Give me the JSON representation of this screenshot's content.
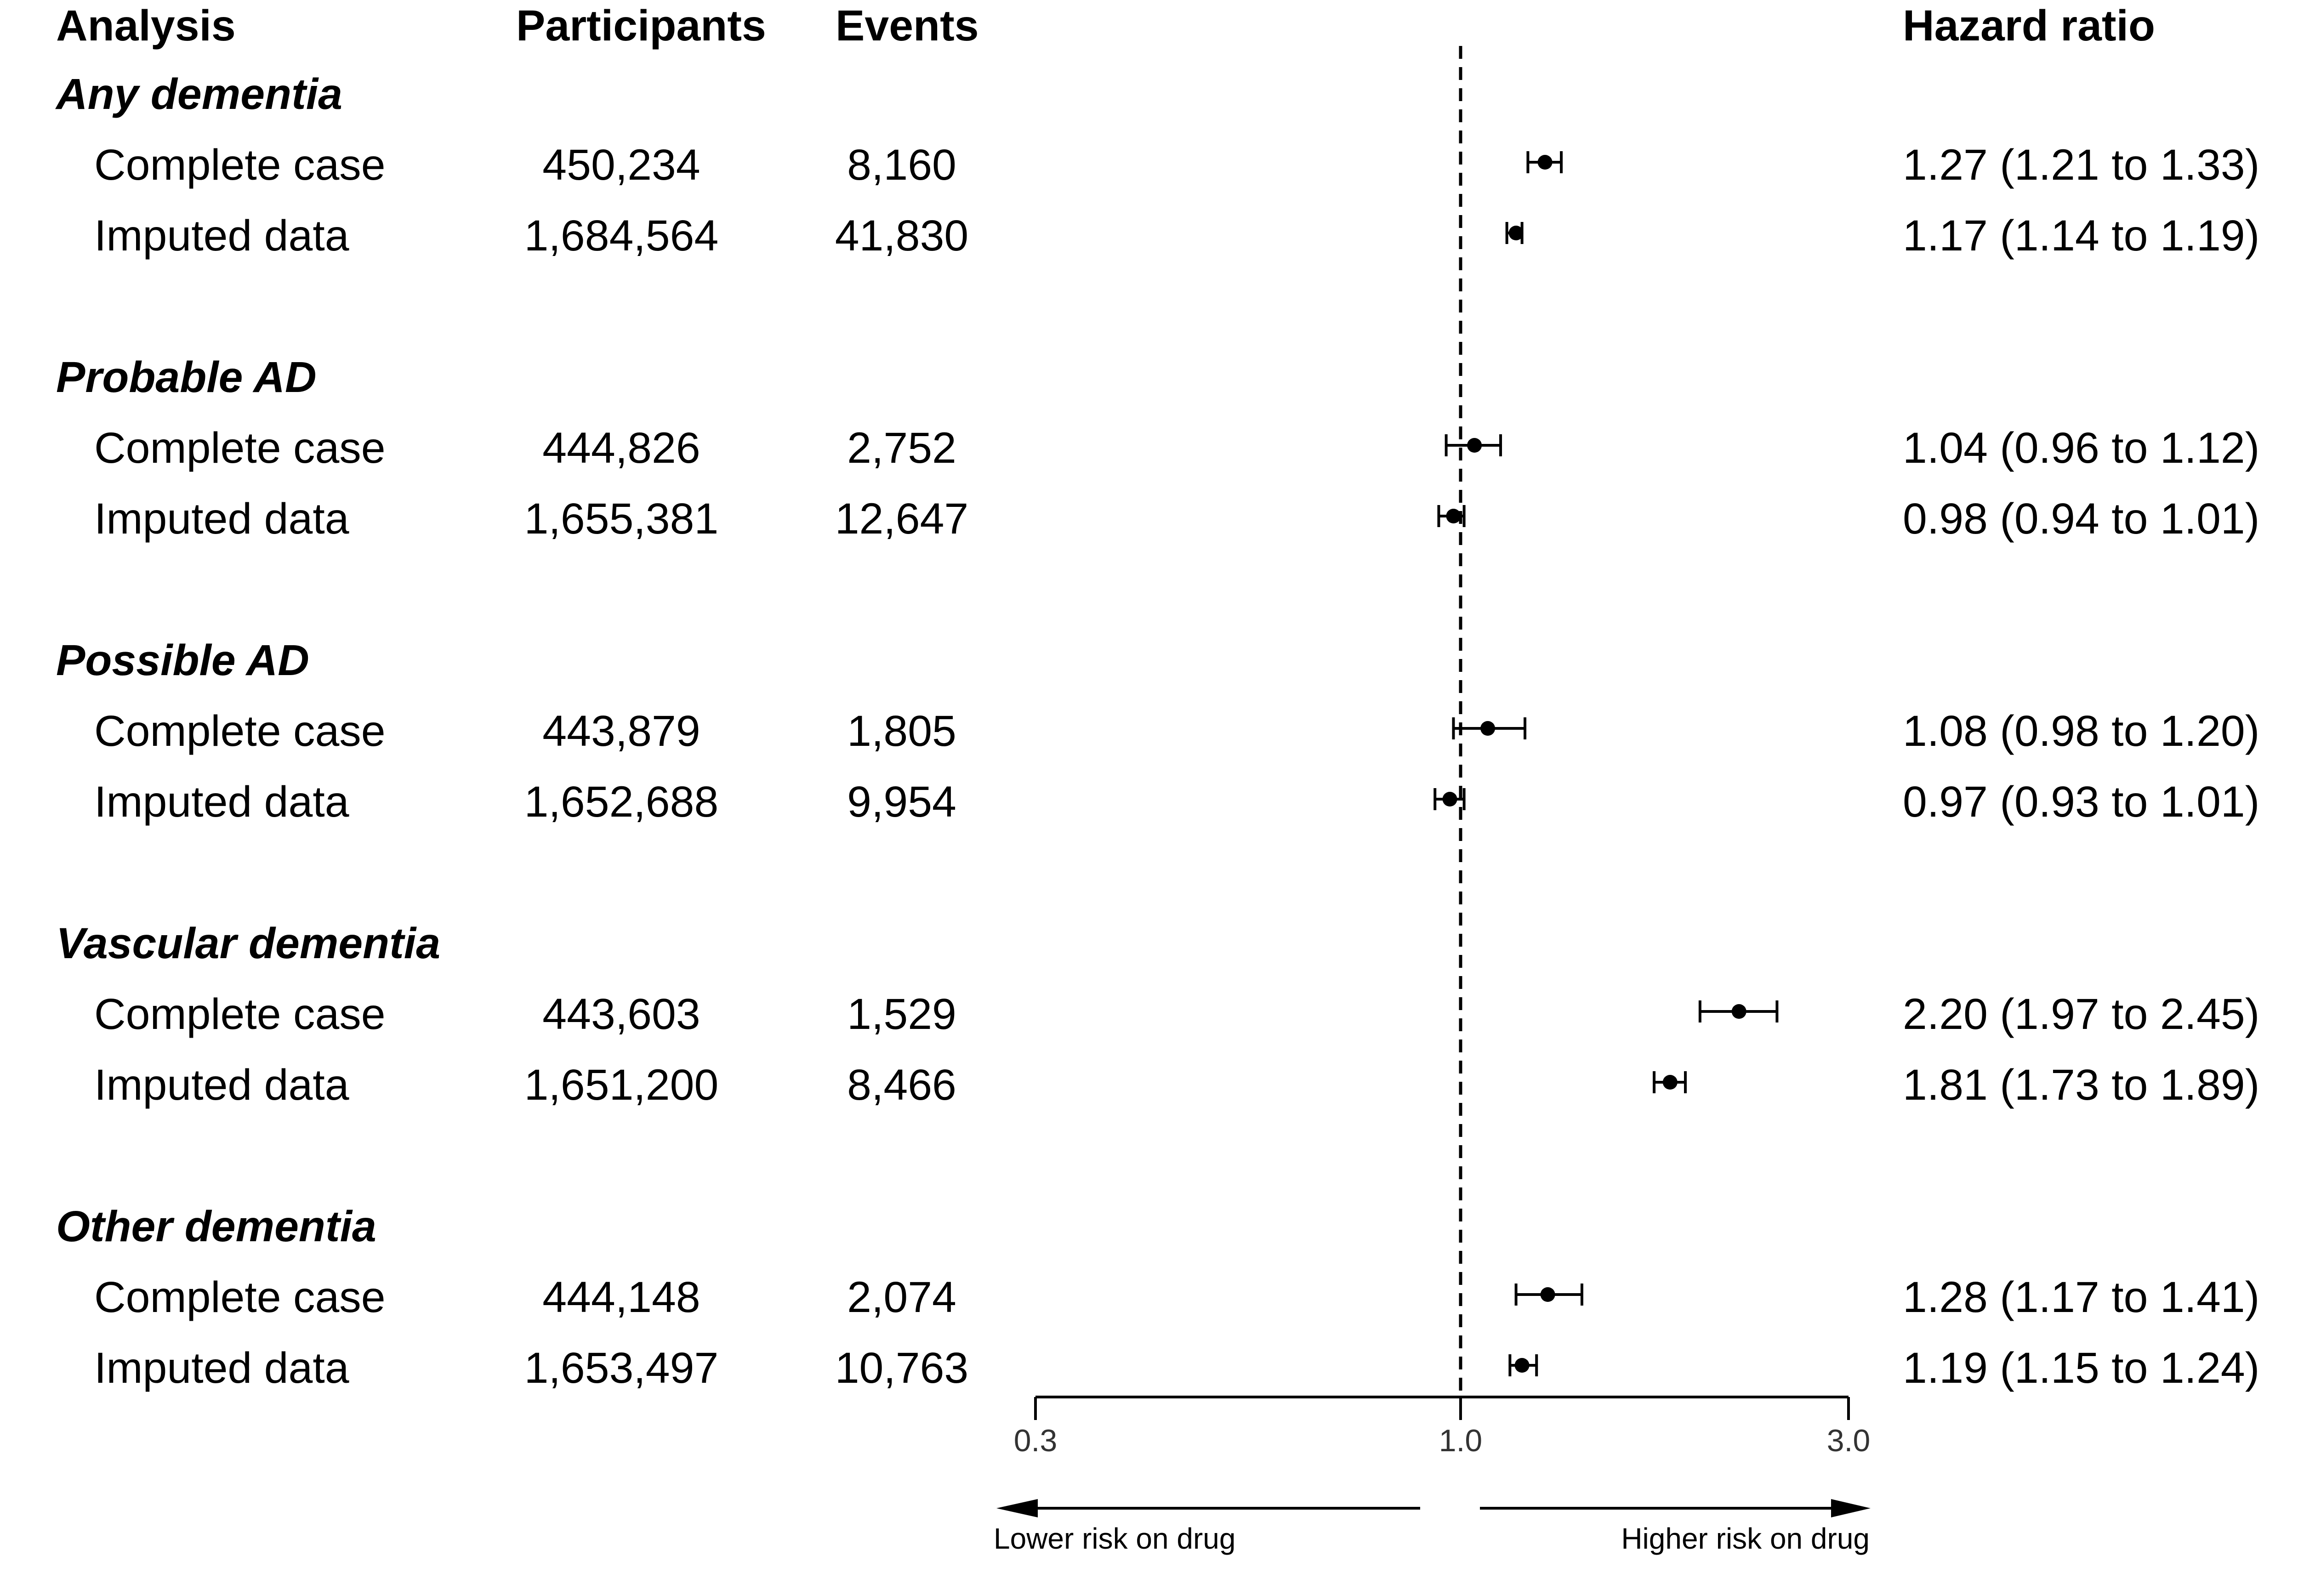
{
  "headers": {
    "analysis": "Analysis",
    "participants": "Participants",
    "events": "Events",
    "hazard_ratio": "Hazard ratio"
  },
  "axis": {
    "ticks": [
      "0.3",
      "1.0",
      "3.0"
    ],
    "lower_label": "Lower risk on drug",
    "higher_label": "Higher risk on drug"
  },
  "chart_data": {
    "type": "forest",
    "scale": "log",
    "xlim": [
      0.3,
      3.0
    ],
    "reference_line": 1.0,
    "groups": [
      {
        "label": "Any dementia",
        "rows": [
          {
            "label": "Complete case",
            "participants": "450,234",
            "events": "8,160",
            "hr": 1.27,
            "lo": 1.21,
            "hi": 1.33,
            "hr_text": "1.27 (1.21 to 1.33)"
          },
          {
            "label": "Imputed data",
            "participants": "1,684,564",
            "events": "41,830",
            "hr": 1.17,
            "lo": 1.14,
            "hi": 1.19,
            "hr_text": "1.17 (1.14 to 1.19)"
          }
        ]
      },
      {
        "label": "Probable AD",
        "rows": [
          {
            "label": "Complete case",
            "participants": "444,826",
            "events": "2,752",
            "hr": 1.04,
            "lo": 0.96,
            "hi": 1.12,
            "hr_text": "1.04 (0.96 to 1.12)"
          },
          {
            "label": "Imputed data",
            "participants": "1,655,381",
            "events": "12,647",
            "hr": 0.98,
            "lo": 0.94,
            "hi": 1.01,
            "hr_text": "0.98 (0.94 to 1.01)"
          }
        ]
      },
      {
        "label": "Possible AD",
        "rows": [
          {
            "label": "Complete case",
            "participants": "443,879",
            "events": "1,805",
            "hr": 1.08,
            "lo": 0.98,
            "hi": 1.2,
            "hr_text": "1.08 (0.98 to 1.20)"
          },
          {
            "label": "Imputed data",
            "participants": "1,652,688",
            "events": "9,954",
            "hr": 0.97,
            "lo": 0.93,
            "hi": 1.01,
            "hr_text": "0.97 (0.93 to 1.01)"
          }
        ]
      },
      {
        "label": "Vascular dementia",
        "rows": [
          {
            "label": "Complete case",
            "participants": "443,603",
            "events": "1,529",
            "hr": 2.2,
            "lo": 1.97,
            "hi": 2.45,
            "hr_text": "2.20 (1.97 to 2.45)"
          },
          {
            "label": "Imputed data",
            "participants": "1,651,200",
            "events": "8,466",
            "hr": 1.81,
            "lo": 1.73,
            "hi": 1.89,
            "hr_text": "1.81 (1.73 to 1.89)"
          }
        ]
      },
      {
        "label": "Other dementia",
        "rows": [
          {
            "label": "Complete case",
            "participants": "444,148",
            "events": "2,074",
            "hr": 1.28,
            "lo": 1.17,
            "hi": 1.41,
            "hr_text": "1.28 (1.17 to 1.41)"
          },
          {
            "label": "Imputed data",
            "participants": "1,653,497",
            "events": "10,763",
            "hr": 1.19,
            "lo": 1.15,
            "hi": 1.24,
            "hr_text": "1.19 (1.15 to 1.24)"
          }
        ]
      }
    ]
  }
}
